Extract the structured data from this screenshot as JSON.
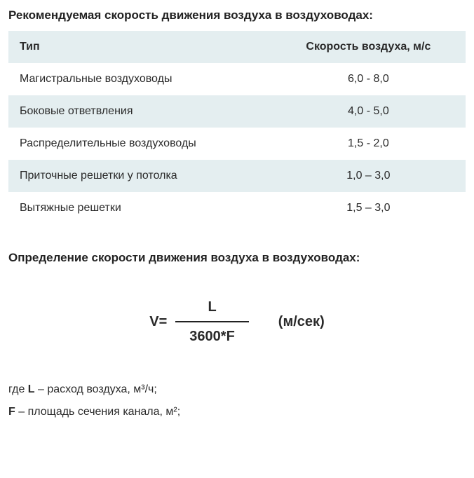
{
  "heading1": "Рекомендуемая скорость движения воздуха в воздуховодах:",
  "table": {
    "colors": {
      "row_odd_bg": "#e4eef0",
      "row_even_bg": "#ffffff",
      "text": "#2a2a2a"
    },
    "header": {
      "col1": "Тип",
      "col2": "Скорость воздуха, м/с"
    },
    "rows": [
      {
        "type": "Магистральные воздуховоды",
        "speed": "6,0 - 8,0"
      },
      {
        "type": "Боковые ответвления",
        "speed": "4,0 - 5,0"
      },
      {
        "type": "Распределительные воздуховоды",
        "speed": "1,5 - 2,0"
      },
      {
        "type": "Приточные решетки у потолка",
        "speed": "1,0 – 3,0"
      },
      {
        "type": "Вытяжные решетки",
        "speed": "1,5 – 3,0"
      }
    ]
  },
  "heading2": "Определение скорости движения воздуха в воздуховодах:",
  "formula": {
    "lhs": "V=",
    "numerator": "L",
    "denominator": "3600*F",
    "unit": "(м/сек)"
  },
  "legend": {
    "line1_prefix": "где ",
    "line1_var": "L",
    "line1_rest": " – расход воздуха, м³/ч;",
    "line2_var": "F",
    "line2_rest": " – площадь сечения канала, м²;"
  }
}
